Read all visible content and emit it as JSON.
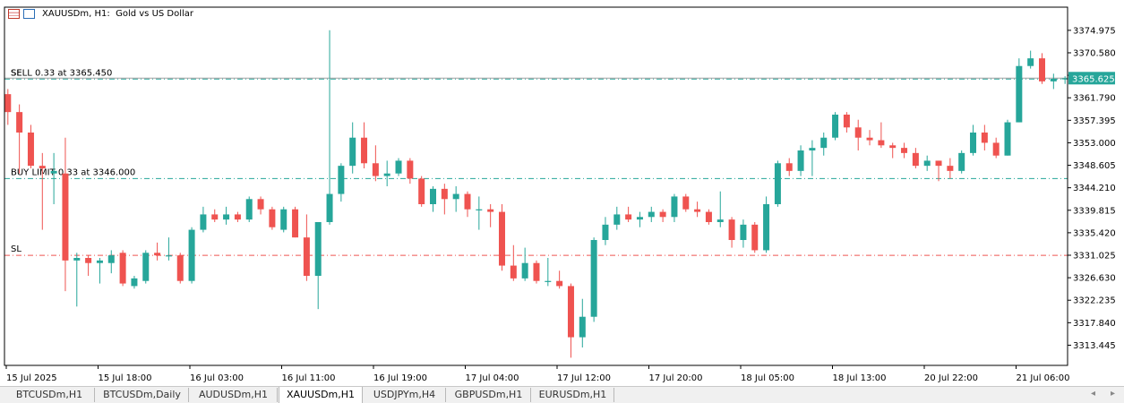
{
  "header": {
    "symbol": "XAUUSDm, H1:",
    "description": "Gold vs US Dollar"
  },
  "tabs": [
    {
      "label": "BTCUSDm,H1",
      "active": false
    },
    {
      "label": "BTCUSDm,Daily",
      "active": false
    },
    {
      "label": "AUDUSDm,H1",
      "active": false
    },
    {
      "label": "XAUUSDm,H1",
      "active": true
    },
    {
      "label": "USDJPYm,H4",
      "active": false
    },
    {
      "label": "GBPUSDm,H1",
      "active": false
    },
    {
      "label": "EURUSDm,H1",
      "active": false
    }
  ],
  "colors": {
    "bull": "#26a69a",
    "bear": "#ef5350",
    "sl_line": "#ef5350",
    "order_line": "#26a69a",
    "price_tag": "#26a69a"
  },
  "chart_data": {
    "type": "candlestick",
    "symbol": "XAUUSDm, H1",
    "ylim": [
      3309.5,
      3379.5
    ],
    "y_ticks": [
      "3374.975",
      "3370.580",
      "3366.185",
      "3361.790",
      "3357.395",
      "3353.000",
      "3348.605",
      "3344.210",
      "3339.815",
      "3335.420",
      "3331.025",
      "3326.630",
      "3322.235",
      "3317.840",
      "3313.445"
    ],
    "x_ticks": [
      "15 Jul 2025",
      "15 Jul 18:00",
      "16 Jul 03:00",
      "16 Jul 11:00",
      "16 Jul 19:00",
      "17 Jul 04:00",
      "17 Jul 12:00",
      "17 Jul 20:00",
      "18 Jul 05:00",
      "18 Jul 13:00",
      "20 Jul 22:00",
      "21 Jul 06:00"
    ],
    "current_price": "3365.625",
    "levels": [
      {
        "label": "SELL 0.33 at 3365.450",
        "short": "SL",
        "price": 3365.45,
        "kind": "order"
      },
      {
        "label": "BUY LIMIT 0.33 at 3346.000",
        "price": 3346.0,
        "kind": "order"
      },
      {
        "label": "SL",
        "price": 3331.0,
        "kind": "sl"
      }
    ],
    "candles": [
      [
        3362.5,
        3363.5,
        3356.5,
        3359.0
      ],
      [
        3359.0,
        3360.5,
        3347.0,
        3355.0
      ],
      [
        3355.0,
        3356.5,
        3348.0,
        3348.5
      ],
      [
        3348.5,
        3351.0,
        3336.0,
        3348.0
      ],
      [
        3347.0,
        3351.0,
        3341.0,
        3347.5
      ],
      [
        3347.0,
        3354.0,
        3324.0,
        3330.0
      ],
      [
        3330.0,
        3331.5,
        3321.0,
        3330.5
      ],
      [
        3330.5,
        3331.0,
        3327.0,
        3329.5
      ],
      [
        3329.5,
        3330.5,
        3325.5,
        3330.0
      ],
      [
        3329.5,
        3332.0,
        3327.5,
        3331.0
      ],
      [
        3331.5,
        3332.0,
        3325.0,
        3325.5
      ],
      [
        3325.0,
        3327.0,
        3324.5,
        3326.5
      ],
      [
        3326.0,
        3332.0,
        3325.5,
        3331.5
      ],
      [
        3331.5,
        3333.5,
        3330.0,
        3331.0
      ],
      [
        3331.0,
        3334.5,
        3330.0,
        3331.0
      ],
      [
        3331.0,
        3331.5,
        3325.5,
        3326.0
      ],
      [
        3326.0,
        3336.5,
        3325.5,
        3336.0
      ],
      [
        3336.0,
        3340.5,
        3335.5,
        3339.0
      ],
      [
        3339.0,
        3340.0,
        3337.5,
        3338.0
      ],
      [
        3338.0,
        3340.5,
        3337.0,
        3339.0
      ],
      [
        3339.0,
        3339.5,
        3337.5,
        3338.0
      ],
      [
        3338.0,
        3342.5,
        3337.5,
        3342.0
      ],
      [
        3342.0,
        3342.5,
        3339.0,
        3340.0
      ],
      [
        3340.0,
        3340.5,
        3336.0,
        3336.5
      ],
      [
        3336.0,
        3340.5,
        3335.5,
        3340.0
      ],
      [
        3340.0,
        3340.5,
        3334.5,
        3334.5
      ],
      [
        3334.5,
        3339.0,
        3326.0,
        3327.0
      ],
      [
        3327.0,
        3337.5,
        3320.5,
        3337.5
      ],
      [
        3337.5,
        3375.0,
        3337.0,
        3343.0
      ],
      [
        3343.0,
        3349.0,
        3341.5,
        3348.5
      ],
      [
        3348.5,
        3357.0,
        3347.0,
        3354.0
      ],
      [
        3354.0,
        3357.0,
        3348.0,
        3349.0
      ],
      [
        3349.0,
        3352.5,
        3345.5,
        3346.5
      ],
      [
        3346.5,
        3349.5,
        3344.5,
        3347.0
      ],
      [
        3347.0,
        3350.0,
        3346.5,
        3349.5
      ],
      [
        3349.5,
        3350.0,
        3345.0,
        3346.0
      ],
      [
        3346.0,
        3346.5,
        3340.5,
        3341.0
      ],
      [
        3341.0,
        3344.5,
        3339.5,
        3344.0
      ],
      [
        3344.0,
        3345.0,
        3339.0,
        3342.0
      ],
      [
        3342.0,
        3344.5,
        3339.5,
        3343.0
      ],
      [
        3343.0,
        3343.5,
        3338.5,
        3340.0
      ],
      [
        3340.0,
        3342.5,
        3336.0,
        3340.0
      ],
      [
        3340.0,
        3341.0,
        3336.5,
        3339.5
      ],
      [
        3339.5,
        3341.0,
        3328.0,
        3329.0
      ],
      [
        3329.0,
        3333.0,
        3326.0,
        3326.5
      ],
      [
        3326.5,
        3332.5,
        3326.0,
        3329.5
      ],
      [
        3329.5,
        3330.0,
        3325.5,
        3326.0
      ],
      [
        3326.0,
        3330.5,
        3325.0,
        3326.0
      ],
      [
        3326.0,
        3328.0,
        3324.5,
        3325.0
      ],
      [
        3325.0,
        3325.5,
        3311.0,
        3315.0
      ],
      [
        3315.0,
        3322.5,
        3313.0,
        3319.0
      ],
      [
        3319.0,
        3334.5,
        3318.0,
        3334.0
      ],
      [
        3334.0,
        3338.5,
        3333.0,
        3337.0
      ],
      [
        3337.0,
        3340.5,
        3336.0,
        3339.0
      ],
      [
        3339.0,
        3340.5,
        3337.5,
        3338.0
      ],
      [
        3338.0,
        3339.5,
        3336.5,
        3338.5
      ],
      [
        3338.5,
        3340.5,
        3337.5,
        3339.5
      ],
      [
        3339.5,
        3340.0,
        3337.5,
        3338.5
      ],
      [
        3338.5,
        3343.0,
        3337.5,
        3342.5
      ],
      [
        3342.5,
        3343.0,
        3339.5,
        3340.0
      ],
      [
        3340.0,
        3341.5,
        3338.5,
        3339.5
      ],
      [
        3339.5,
        3340.0,
        3337.0,
        3337.5
      ],
      [
        3337.5,
        3343.5,
        3336.5,
        3338.0
      ],
      [
        3338.0,
        3338.5,
        3332.5,
        3334.0
      ],
      [
        3334.0,
        3338.0,
        3332.5,
        3337.0
      ],
      [
        3337.0,
        3337.5,
        3331.5,
        3332.0
      ],
      [
        3332.0,
        3342.5,
        3331.5,
        3341.0
      ],
      [
        3341.0,
        3349.5,
        3340.5,
        3349.0
      ],
      [
        3349.0,
        3350.0,
        3346.5,
        3347.5
      ],
      [
        3347.5,
        3352.5,
        3346.5,
        3351.5
      ],
      [
        3351.5,
        3353.5,
        3346.5,
        3352.0
      ],
      [
        3352.0,
        3355.0,
        3350.5,
        3354.0
      ],
      [
        3354.0,
        3359.0,
        3353.5,
        3358.5
      ],
      [
        3358.5,
        3359.0,
        3355.0,
        3356.0
      ],
      [
        3356.0,
        3357.5,
        3351.5,
        3354.0
      ],
      [
        3354.0,
        3355.5,
        3352.5,
        3353.5
      ],
      [
        3353.5,
        3357.0,
        3352.0,
        3352.5
      ],
      [
        3352.5,
        3353.0,
        3350.0,
        3352.0
      ],
      [
        3352.0,
        3353.0,
        3350.0,
        3351.0
      ],
      [
        3351.0,
        3352.0,
        3348.0,
        3348.5
      ],
      [
        3348.5,
        3350.5,
        3347.5,
        3349.5
      ],
      [
        3349.5,
        3349.5,
        3345.5,
        3348.5
      ],
      [
        3348.5,
        3350.0,
        3346.0,
        3347.5
      ],
      [
        3347.5,
        3351.5,
        3347.0,
        3351.0
      ],
      [
        3351.0,
        3356.5,
        3350.5,
        3355.0
      ],
      [
        3355.0,
        3356.5,
        3351.5,
        3353.0
      ],
      [
        3353.0,
        3354.0,
        3350.0,
        3350.5
      ],
      [
        3350.5,
        3357.5,
        3350.5,
        3357.0
      ],
      [
        3357.0,
        3369.5,
        3357.0,
        3368.0
      ],
      [
        3368.0,
        3371.0,
        3367.5,
        3369.5
      ],
      [
        3369.5,
        3370.5,
        3364.5,
        3365.0
      ],
      [
        3365.0,
        3366.5,
        3363.5,
        3365.5
      ],
      [
        3365.5,
        3366.0,
        3364.5,
        3365.6
      ]
    ]
  }
}
